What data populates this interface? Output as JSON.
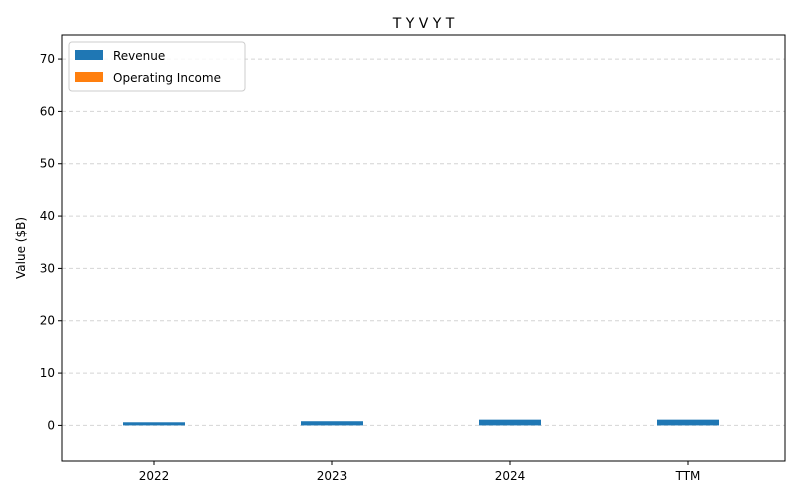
{
  "chart_data": {
    "type": "bar",
    "title": "T Y V Y T",
    "xlabel": "",
    "ylabel": "Value ($B)",
    "categories": [
      "2022",
      "2023",
      "2024",
      "TTM"
    ],
    "series": [
      {
        "name": "Revenue",
        "color": "#1f77b4",
        "values": [
          0.6,
          0.8,
          1.1,
          1.1
        ]
      },
      {
        "name": "Operating Income",
        "color": "#ff7f0e",
        "values": [
          0.0,
          0.0,
          0.0,
          0.0
        ]
      }
    ],
    "ylim": [
      -6.8,
      74.6
    ],
    "yticks": [
      0,
      10,
      20,
      30,
      40,
      50,
      60,
      70
    ],
    "ytick_labels": [
      "0",
      "10",
      "20",
      "30",
      "40",
      "50",
      "60",
      "70"
    ],
    "grid": true,
    "legend_position": "top-left"
  }
}
